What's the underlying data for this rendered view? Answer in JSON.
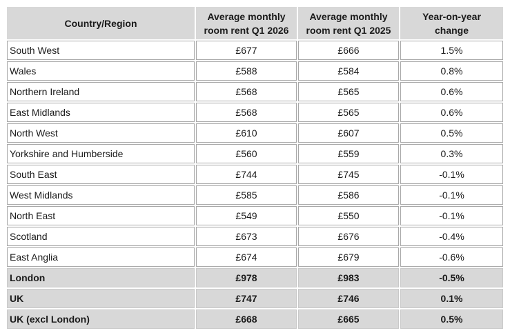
{
  "chart_data": {
    "type": "table",
    "columns": [
      "Country/Region",
      "Average monthly room rent Q1 2026",
      "Average monthly room rent Q1 2025",
      "Year-on-year change"
    ],
    "rows": [
      {
        "region": "South West",
        "rent_q1_2026": "£677",
        "rent_q1_2025": "£666",
        "yoy_change": "1.5%",
        "emphasis": false
      },
      {
        "region": "Wales",
        "rent_q1_2026": "£588",
        "rent_q1_2025": "£584",
        "yoy_change": "0.8%",
        "emphasis": false
      },
      {
        "region": "Northern Ireland",
        "rent_q1_2026": "£568",
        "rent_q1_2025": "£565",
        "yoy_change": "0.6%",
        "emphasis": false
      },
      {
        "region": "East Midlands",
        "rent_q1_2026": "£568",
        "rent_q1_2025": "£565",
        "yoy_change": "0.6%",
        "emphasis": false
      },
      {
        "region": "North West",
        "rent_q1_2026": "£610",
        "rent_q1_2025": "£607",
        "yoy_change": "0.5%",
        "emphasis": false
      },
      {
        "region": "Yorkshire and Humberside",
        "rent_q1_2026": "£560",
        "rent_q1_2025": "£559",
        "yoy_change": "0.3%",
        "emphasis": false
      },
      {
        "region": "South East",
        "rent_q1_2026": "£744",
        "rent_q1_2025": "£745",
        "yoy_change": "-0.1%",
        "emphasis": false
      },
      {
        "region": "West Midlands",
        "rent_q1_2026": "£585",
        "rent_q1_2025": "£586",
        "yoy_change": "-0.1%",
        "emphasis": false
      },
      {
        "region": "North East",
        "rent_q1_2026": "£549",
        "rent_q1_2025": "£550",
        "yoy_change": "-0.1%",
        "emphasis": false
      },
      {
        "region": "Scotland",
        "rent_q1_2026": "£673",
        "rent_q1_2025": "£676",
        "yoy_change": "-0.4%",
        "emphasis": false
      },
      {
        "region": "East Anglia",
        "rent_q1_2026": "£674",
        "rent_q1_2025": "£679",
        "yoy_change": "-0.6%",
        "emphasis": false
      },
      {
        "region": "London",
        "rent_q1_2026": "£978",
        "rent_q1_2025": "£983",
        "yoy_change": "-0.5%",
        "emphasis": true
      },
      {
        "region": "UK",
        "rent_q1_2026": "£747",
        "rent_q1_2025": "£746",
        "yoy_change": "0.1%",
        "emphasis": true
      },
      {
        "region": "UK (excl London)",
        "rent_q1_2026": "£668",
        "rent_q1_2025": "£665",
        "yoy_change": "0.5%",
        "emphasis": true
      }
    ]
  },
  "colors": {
    "header_bg": "#d8d8d8",
    "summary_row_bg": "#d8d8d8",
    "body_cell_bg": "#ffffff",
    "cell_border": "#a8a8a8",
    "text": "#1a1a1a"
  }
}
